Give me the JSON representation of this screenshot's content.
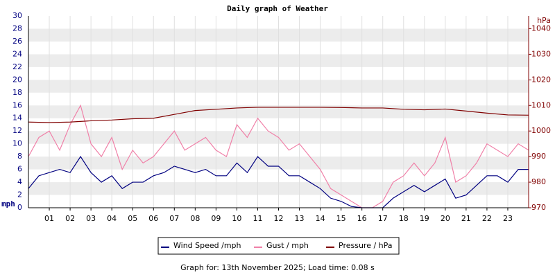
{
  "chart_data": {
    "type": "line",
    "title": "Daily graph of Weather",
    "y_label": "mph",
    "y2_label": "hPa",
    "footnote": "Graph for: 13th November 2025; Load time: 0.08 s",
    "xlim": [
      0,
      24
    ],
    "xticks": [
      {
        "value": 1,
        "label": "01"
      },
      {
        "value": 2,
        "label": "02"
      },
      {
        "value": 3,
        "label": "03"
      },
      {
        "value": 4,
        "label": "04"
      },
      {
        "value": 5,
        "label": "05"
      },
      {
        "value": 6,
        "label": "06"
      },
      {
        "value": 7,
        "label": "07"
      },
      {
        "value": 8,
        "label": "08"
      },
      {
        "value": 9,
        "label": "09"
      },
      10,
      11,
      12,
      13,
      14,
      15,
      16,
      17,
      18,
      19,
      20,
      21,
      22,
      23
    ],
    "ylim": [
      0,
      30
    ],
    "yticks": [
      0,
      2,
      4,
      6,
      8,
      10,
      12,
      14,
      16,
      18,
      20,
      22,
      24,
      26,
      28,
      30
    ],
    "y2lim": [
      970,
      1045
    ],
    "y2ticks": [
      970,
      980,
      990,
      1000,
      1010,
      1020,
      1030,
      1040
    ],
    "grid": true,
    "series": [
      {
        "name": "Wind Speed /mph",
        "color": "#000080",
        "x": [
          0,
          0.5,
          1,
          1.5,
          2,
          2.5,
          3,
          3.5,
          4,
          4.5,
          5,
          5.5,
          6,
          6.5,
          7,
          7.5,
          8,
          8.5,
          9,
          9.5,
          10,
          10.5,
          11,
          11.5,
          12,
          12.5,
          13,
          13.5,
          14,
          14.5,
          15,
          15.5,
          16,
          16.5,
          17,
          17.5,
          18,
          18.5,
          19,
          19.5,
          20,
          20.5,
          21,
          21.5,
          22,
          22.5,
          23,
          23.5,
          24
        ],
        "values": [
          3,
          5,
          5.5,
          6,
          5.5,
          8,
          5.5,
          4,
          5,
          3,
          4,
          4,
          5,
          5.5,
          6.5,
          6,
          5.5,
          6,
          5,
          5,
          7,
          5.5,
          8,
          6.5,
          6.5,
          5,
          5,
          4,
          3,
          1.5,
          1,
          0.2,
          0,
          0,
          0,
          1.5,
          2.5,
          3.5,
          2.5,
          3.5,
          4.5,
          1.5,
          2,
          3.5,
          5,
          5,
          4,
          6,
          6
        ]
      },
      {
        "name": "Gust / mph",
        "color": "#f080a8",
        "x": [
          0,
          0.5,
          1,
          1.5,
          2,
          2.5,
          3,
          3.5,
          4,
          4.5,
          5,
          5.5,
          6,
          6.5,
          7,
          7.5,
          8,
          8.5,
          9,
          9.5,
          10,
          10.5,
          11,
          11.5,
          12,
          12.5,
          13,
          13.5,
          14,
          14.5,
          15,
          15.5,
          16,
          16.5,
          17,
          17.5,
          18,
          18.5,
          19,
          19.5,
          20,
          20.5,
          21,
          21.5,
          22,
          22.5,
          23,
          23.5,
          24
        ],
        "values": [
          8,
          11,
          12,
          9,
          13,
          16,
          10,
          8,
          11,
          6,
          9,
          7,
          8,
          10,
          12,
          9,
          10,
          11,
          9,
          8,
          13,
          11,
          14,
          12,
          11,
          9,
          10,
          8,
          6,
          3,
          2,
          1,
          0,
          0,
          1,
          4,
          5,
          7,
          5,
          7,
          11,
          4,
          5,
          7,
          10,
          9,
          8,
          10,
          9
        ]
      },
      {
        "name": "Pressure / hPa",
        "color": "#800000",
        "axis": "y2",
        "x": [
          0,
          1,
          2,
          3,
          4,
          5,
          6,
          7,
          8,
          9,
          10,
          11,
          12,
          13,
          14,
          15,
          16,
          17,
          18,
          19,
          20,
          21,
          22,
          23,
          24
        ],
        "values": [
          1003.5,
          1003.3,
          1003.5,
          1004,
          1004.3,
          1004.8,
          1005,
          1006.5,
          1008,
          1008.5,
          1009,
          1009.3,
          1009.3,
          1009.3,
          1009.3,
          1009.2,
          1009,
          1009,
          1008.5,
          1008.3,
          1008.6,
          1007.8,
          1007,
          1006.3,
          1006.2
        ]
      }
    ]
  }
}
